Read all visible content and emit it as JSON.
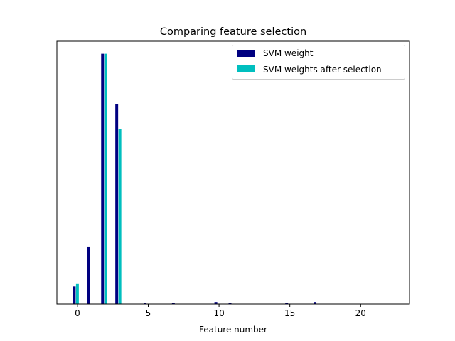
{
  "chart_data": {
    "type": "bar",
    "title": "Comparing feature selection",
    "xlabel": "Feature number",
    "ylabel": "",
    "xlim": [
      -1.45,
      23.45
    ],
    "ylim": [
      0,
      1.05
    ],
    "xticks": [
      0,
      5,
      10,
      15,
      20
    ],
    "yticks_visible": false,
    "legend_position": "upper-right",
    "legend": [
      {
        "label": "SVM weight",
        "color": "#000080"
      },
      {
        "label": "SVM weights after selection",
        "color": "#00bfbf"
      }
    ],
    "series": [
      {
        "name": "SVM weight",
        "color": "#000080",
        "offset": -0.225,
        "width": 0.2,
        "x": [
          0,
          1,
          2,
          3,
          4,
          5,
          6,
          7,
          8,
          9,
          10,
          11,
          12,
          13,
          14,
          15,
          16,
          17,
          18,
          19,
          20,
          21,
          22
        ],
        "values": [
          0.07,
          0.23,
          1.0,
          0.8,
          0.0,
          0.005,
          0.0,
          0.005,
          0.0,
          0.0,
          0.008,
          0.005,
          0.0,
          0.0,
          0.0,
          0.005,
          0.0,
          0.008,
          0.0,
          0.0,
          0.0,
          0.0,
          0.0
        ]
      },
      {
        "name": "SVM weights after selection",
        "color": "#00bfbf",
        "offset": 0.0,
        "width": 0.2,
        "x": [
          0,
          1,
          2,
          3
        ],
        "values": [
          0.08,
          0.0,
          1.0,
          0.7
        ]
      }
    ]
  }
}
